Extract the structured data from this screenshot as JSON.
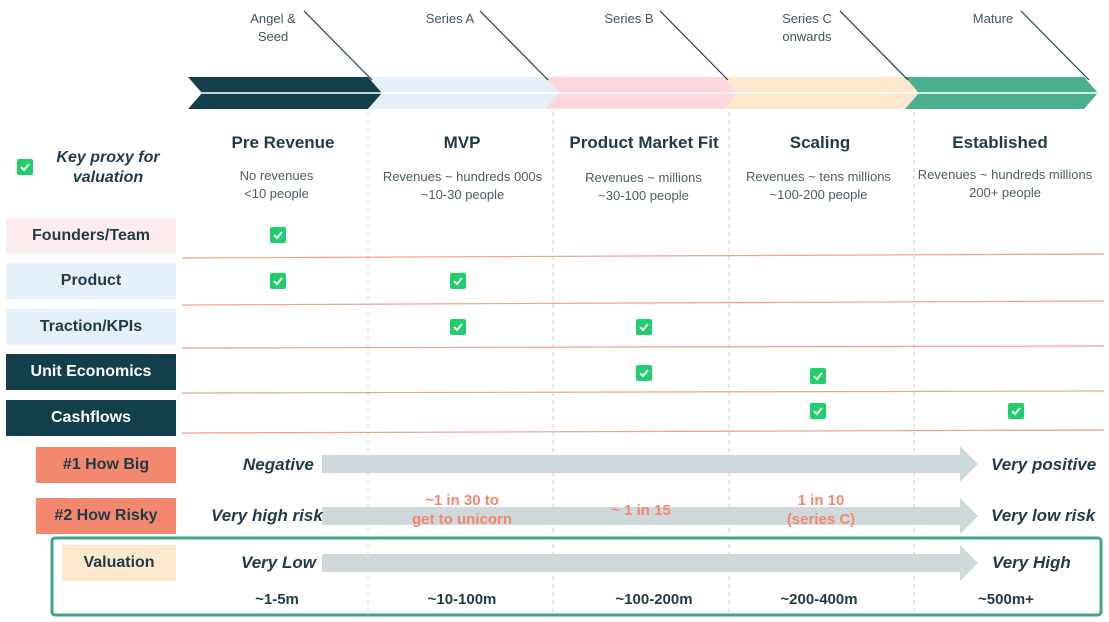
{
  "rounds": [
    "Angel &\nSeed",
    "Series A",
    "Series B",
    "Series C\nonwards",
    "Mature"
  ],
  "stages": [
    {
      "title": "Pre Revenue",
      "desc1": "No revenues",
      "desc2": "<10 people"
    },
    {
      "title": "MVP",
      "desc1": "Revenues ~ hundreds 000s",
      "desc2": "~10-30 people"
    },
    {
      "title": "Product Market Fit",
      "desc1": "Revenues ~ millions",
      "desc2": "~30-100 people"
    },
    {
      "title": "Scaling",
      "desc1": "Revenues ~ tens millions",
      "desc2": "~100-200 people"
    },
    {
      "title": "Established",
      "desc1": "Revenues ~ hundreds millions",
      "desc2": "200+ people"
    }
  ],
  "legend": {
    "label": "Key proxy for\nvaluation"
  },
  "rows": [
    {
      "label": "Founders/Team",
      "checks": [
        true,
        false,
        false,
        false,
        false
      ]
    },
    {
      "label": "Product",
      "checks": [
        true,
        true,
        false,
        false,
        false
      ]
    },
    {
      "label": "Traction/KPIs",
      "checks": [
        false,
        true,
        true,
        false,
        false
      ]
    },
    {
      "label": "Unit Economics",
      "checks": [
        false,
        false,
        true,
        true,
        false
      ]
    },
    {
      "label": "Cashflows",
      "checks": [
        false,
        false,
        false,
        true,
        true
      ]
    }
  ],
  "metrics": {
    "how_big": {
      "label": "#1 How Big",
      "start": "Negative",
      "end": "Very positive"
    },
    "how_risky": {
      "label": "#2 How Risky",
      "start": "Very high risk",
      "end": "Very low risk",
      "mid": [
        "~1 in 30 to\nget to unicorn",
        "~ 1 in 15",
        "1 in 10\n(series C)"
      ]
    },
    "valuation": {
      "label": "Valuation",
      "start": "Very Low",
      "end": "Very High",
      "values": [
        "~1-5m",
        "~10-100m",
        "~100-200m",
        "~200-400m",
        "~500m+"
      ]
    }
  },
  "colors": {
    "navy": "#133f4d",
    "series_a": "#e6f0fb",
    "series_b": "#fdd6de",
    "series_c": "#fde8cd",
    "mature": "#4bb08e",
    "coral": "#f4886e",
    "check": "#1fcf6b",
    "frame": "#3fa587",
    "arrow": "#cfd9dc"
  }
}
